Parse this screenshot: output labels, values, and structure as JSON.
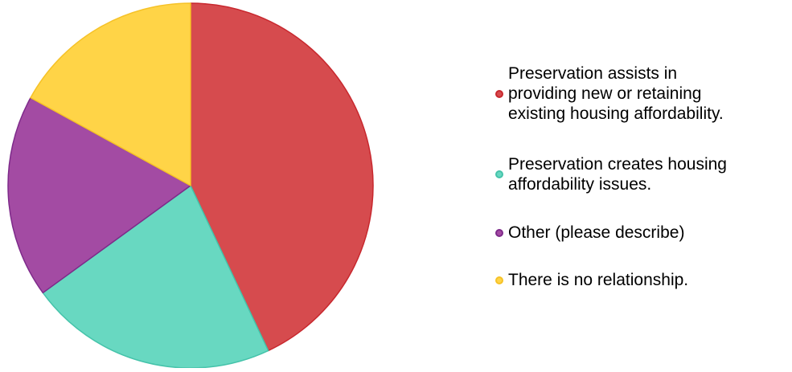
{
  "chart_data": {
    "type": "pie",
    "title": "",
    "legend_position": "right",
    "start_angle_deg": 0,
    "direction": "clockwise",
    "slices": [
      {
        "label": "Preservation assists in\nproviding new or retaining\nexisting housing affordability.",
        "value": 43,
        "color": "#D64B4E",
        "edge_color": "#C8282E"
      },
      {
        "label": "Preservation creates housing\naffordability issues.",
        "value": 22,
        "color": "#68D8C1",
        "edge_color": "#45C3AA"
      },
      {
        "label": "Other (please describe)",
        "value": 18,
        "color": "#A34BA3",
        "edge_color": "#7E2A8A"
      },
      {
        "label": "There is no relationship.",
        "value": 17,
        "color": "#FFD447",
        "edge_color": "#F6C227"
      }
    ]
  }
}
